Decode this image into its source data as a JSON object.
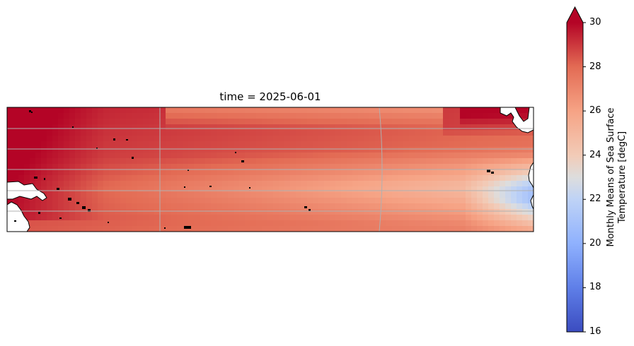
{
  "title": "time = 2025-06-01",
  "colorbar": {
    "label_line1": "Monthly Means of Sea Surface",
    "label_line2": "Temperature [degC]",
    "min": 16,
    "max": 30,
    "ticks": [
      16,
      18,
      20,
      22,
      24,
      26,
      28,
      30
    ],
    "tick_labels": [
      "16",
      "18",
      "20",
      "22",
      "24",
      "26",
      "28",
      "30"
    ],
    "extend": "max",
    "colormap": "coolwarm"
  },
  "map": {
    "field": "sea surface temperature",
    "region": "tropical Pacific",
    "gridlines": true,
    "coastlines": true,
    "colors": {
      "warmest": "#b40426",
      "coolest": "#3b4cc0",
      "mid": "#dddddd",
      "land": "#ffffff",
      "gridline": "#b0b0b0",
      "coastline": "#000000"
    }
  }
}
